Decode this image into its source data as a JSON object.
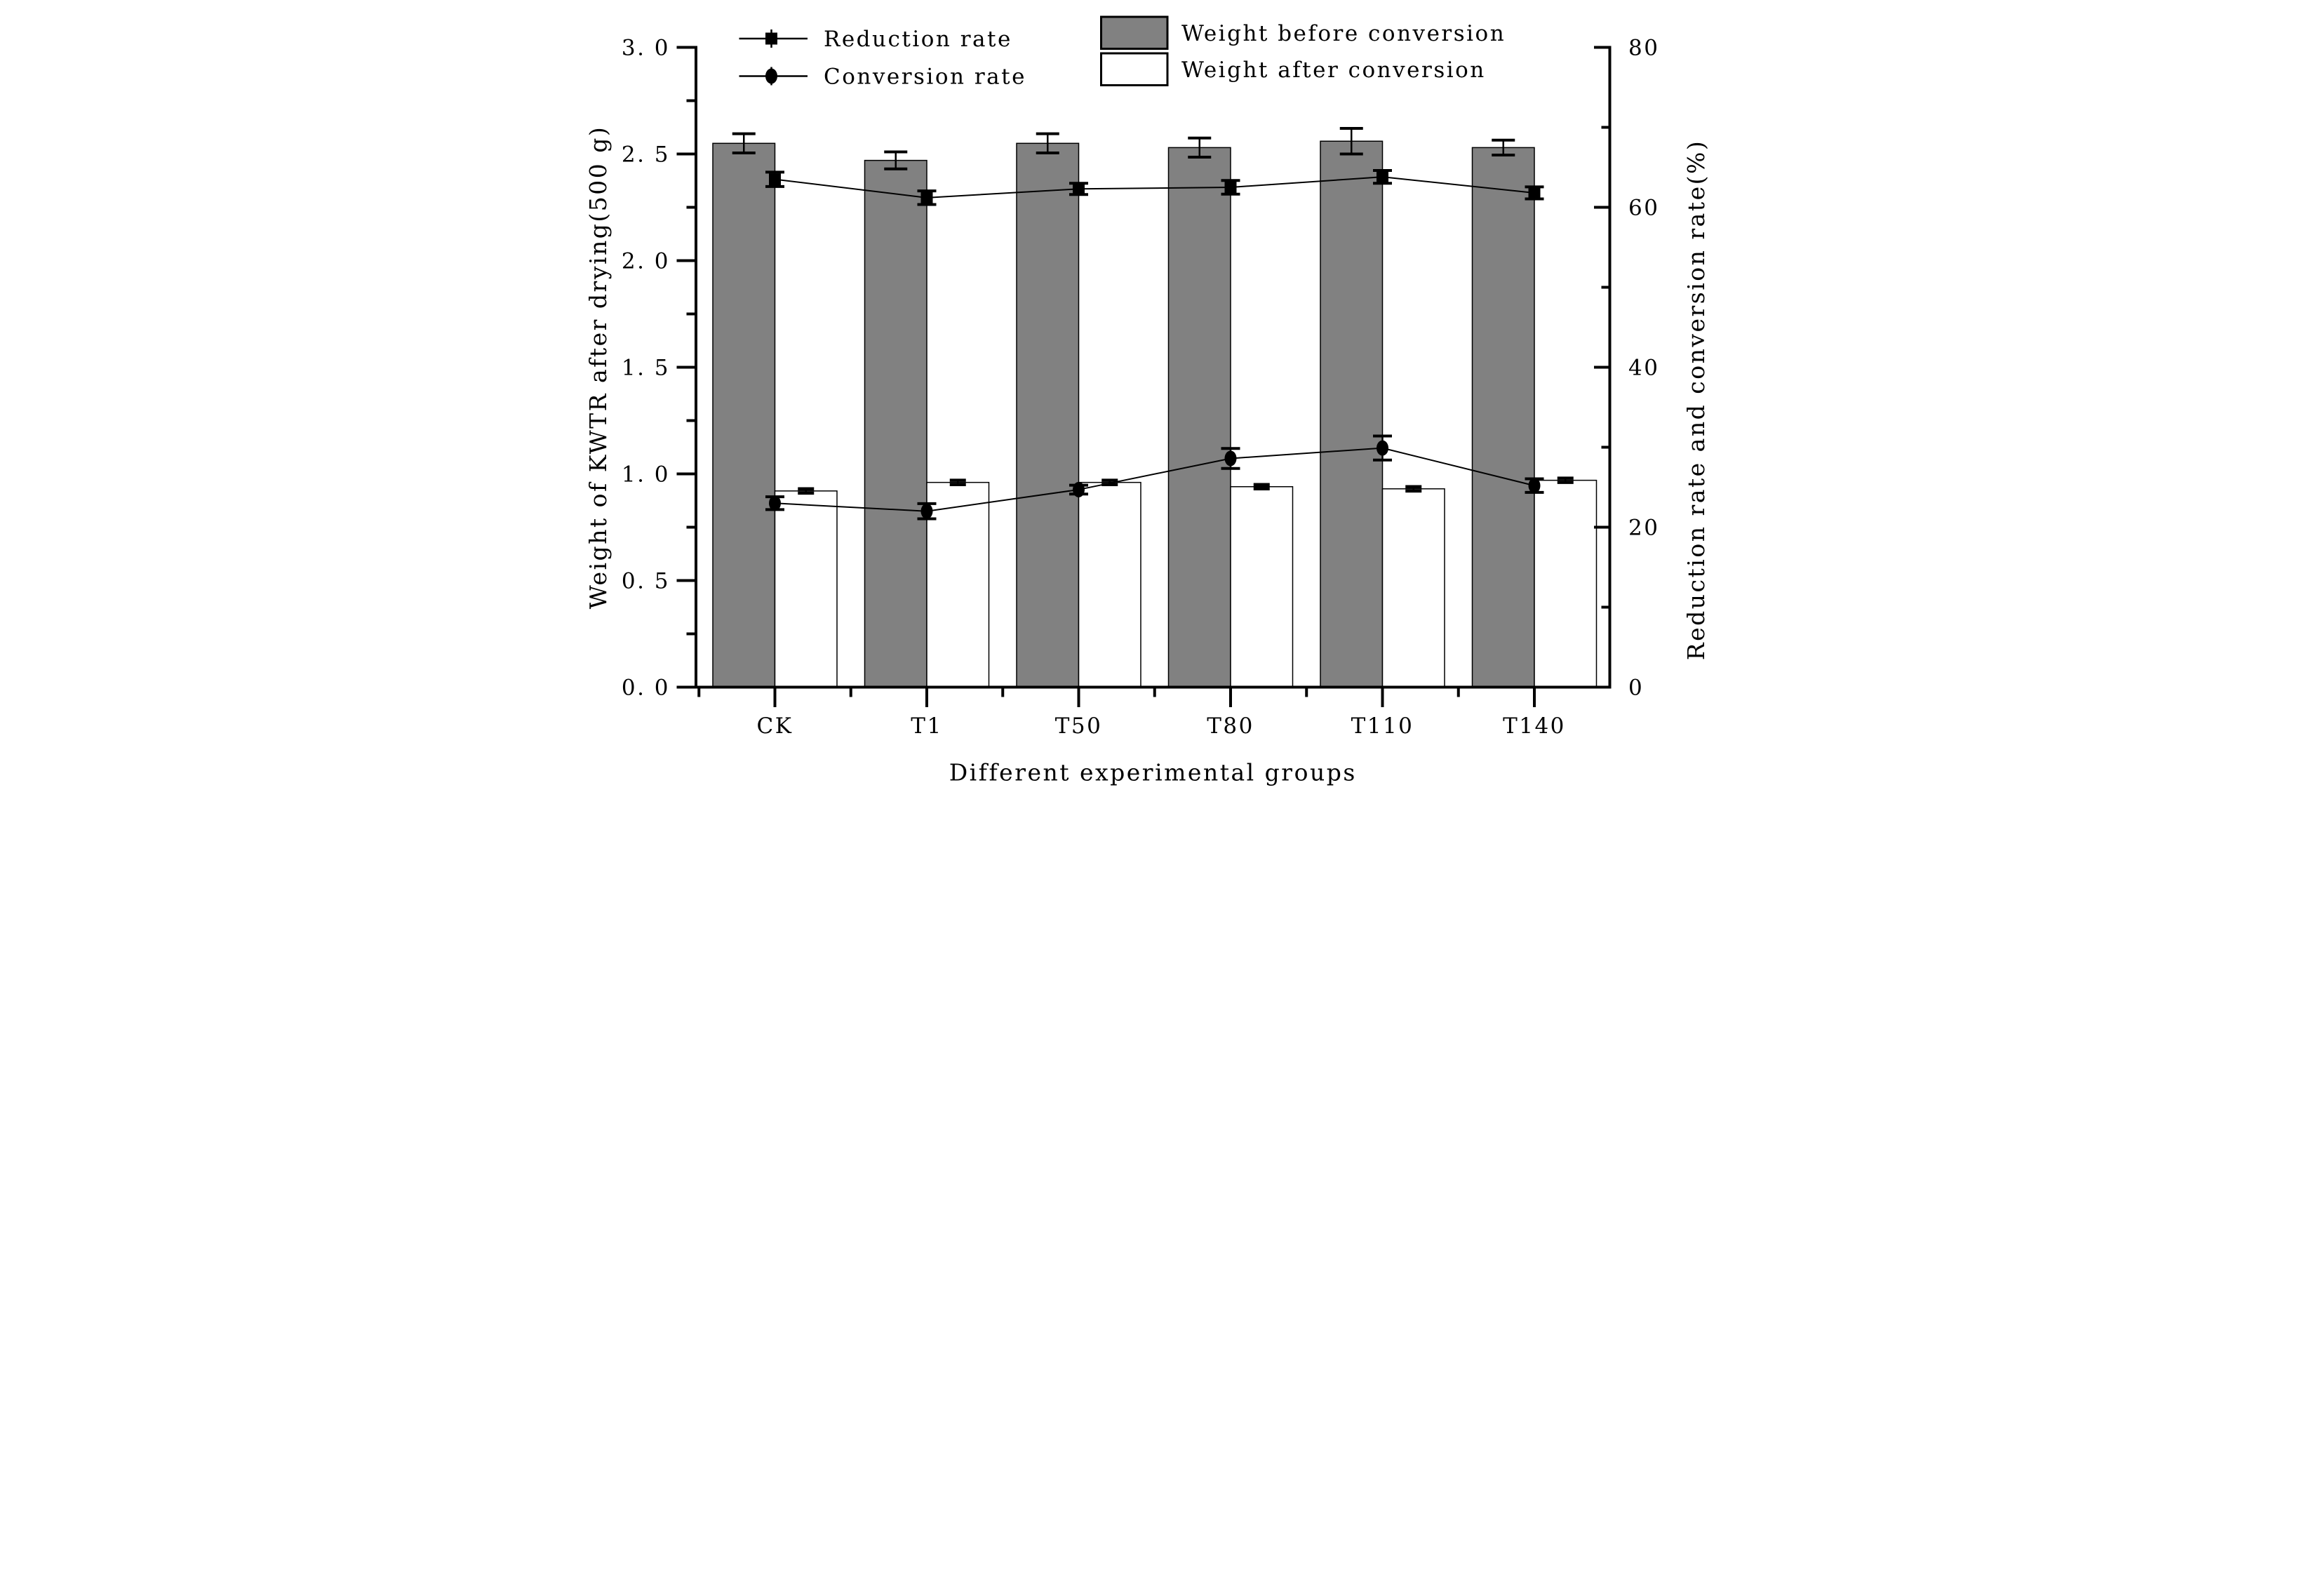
{
  "figure": {
    "background": "#ffffff",
    "ink_color": "#000000",
    "bar_gray": "#818181",
    "bar_white": "#ffffff"
  },
  "chart_data": {
    "type": "combo-bar-line",
    "title": "",
    "categories": [
      "CK",
      "T1",
      "T50",
      "T80",
      "T110",
      "T140"
    ],
    "xlabel": "Different experimental groups",
    "left_axis": {
      "label": "Weight of KWTR after drying(500 g)",
      "min": 0.0,
      "max": 3.0,
      "major_step": 0.5,
      "minor_step": 0.25,
      "tick_labels": [
        "0. 0",
        "0. 5",
        "1. 0",
        "1. 5",
        "2. 0",
        "2. 5",
        "3. 0"
      ]
    },
    "right_axis": {
      "label": "Reduction rate and conversion rate(%)",
      "min": 0,
      "max": 80,
      "major_step": 20,
      "minor_step": 10,
      "tick_labels": [
        "0",
        "20",
        "40",
        "60",
        "80"
      ]
    },
    "grid": false,
    "legend_position": "top",
    "series": [
      {
        "name": "Weight before conversion",
        "type": "bar",
        "axis": "left",
        "fill": "#818181",
        "values": [
          2.55,
          2.47,
          2.55,
          2.53,
          2.56,
          2.53
        ],
        "errors": [
          0.045,
          0.04,
          0.045,
          0.045,
          0.06,
          0.035
        ]
      },
      {
        "name": "Weight after conversion",
        "type": "bar",
        "axis": "left",
        "fill": "#ffffff",
        "values": [
          0.92,
          0.96,
          0.96,
          0.94,
          0.93,
          0.97
        ],
        "errors": [
          0.01,
          0.01,
          0.01,
          0.01,
          0.01,
          0.01
        ]
      },
      {
        "name": "Reduction rate",
        "type": "line",
        "marker": "square",
        "axis": "right",
        "color": "#000000",
        "values": [
          63.5,
          61.2,
          62.3,
          62.5,
          63.8,
          61.8
        ],
        "errors": [
          0.9,
          0.85,
          0.7,
          0.85,
          0.8,
          0.75
        ]
      },
      {
        "name": "Conversion rate",
        "type": "line",
        "marker": "circle",
        "axis": "right",
        "color": "#000000",
        "values": [
          23.0,
          22.0,
          24.7,
          28.6,
          29.9,
          25.2
        ],
        "errors": [
          0.8,
          0.95,
          0.55,
          1.25,
          1.5,
          0.85
        ]
      }
    ]
  }
}
